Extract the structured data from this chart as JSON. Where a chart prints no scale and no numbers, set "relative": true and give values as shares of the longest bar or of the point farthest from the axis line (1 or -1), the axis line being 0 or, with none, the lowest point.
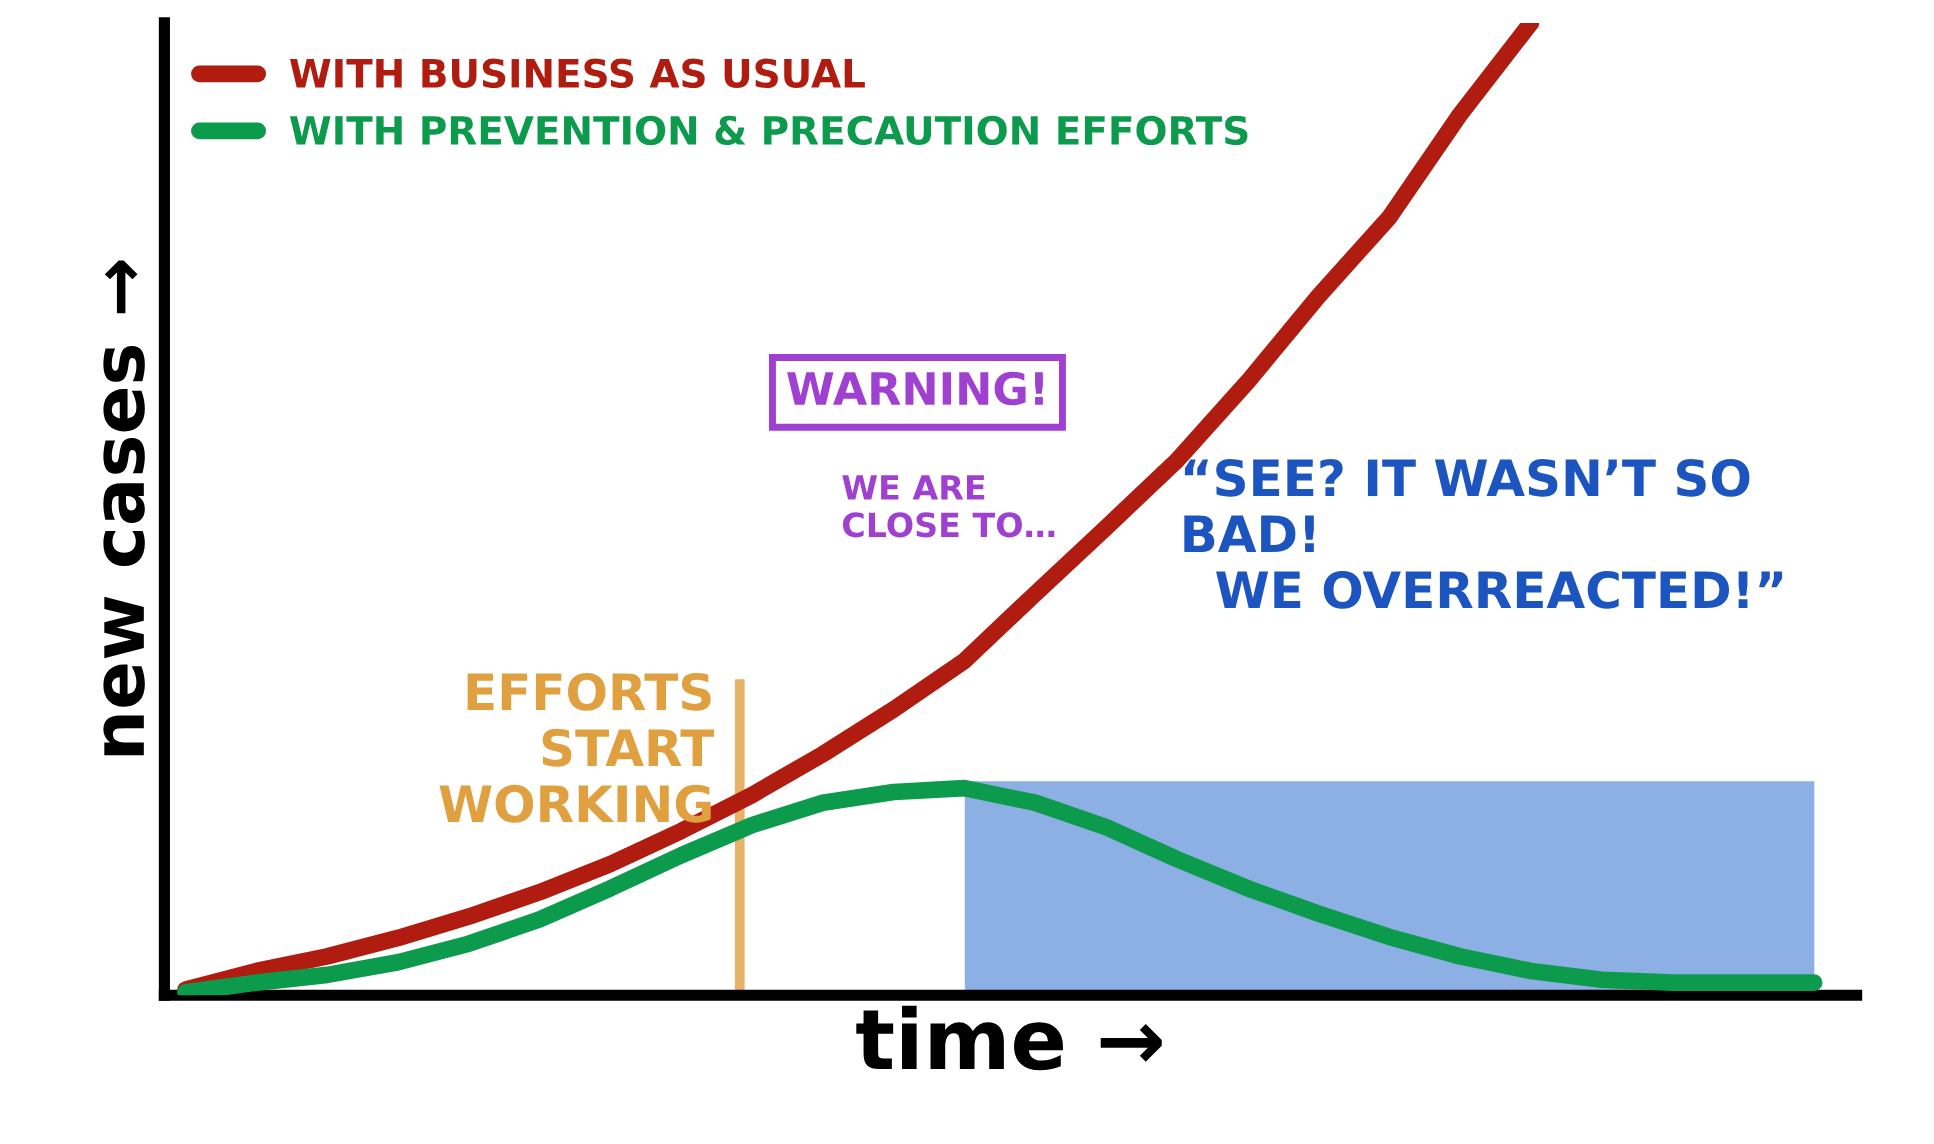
{
  "chart_data": {
    "type": "line",
    "relative": true,
    "xlabel": "time →",
    "ylabel": "new cases →",
    "categories": [
      null,
      null,
      null,
      null,
      null,
      null,
      null,
      null,
      null,
      null,
      null,
      null,
      null,
      null,
      null,
      null,
      null,
      null,
      null,
      null,
      null,
      null,
      null,
      null
    ],
    "series": [
      {
        "name": "WITH BUSINESS AS USUAL",
        "color": "#b01c10",
        "values": [
          0.006,
          0.025,
          0.04,
          0.059,
          0.081,
          0.106,
          0.135,
          0.169,
          0.206,
          0.248,
          0.294,
          0.344,
          0.413,
          0.481,
          0.55,
          0.631,
          0.719,
          0.8,
          0.906,
          1.0,
          null,
          null,
          null,
          null
        ]
      },
      {
        "name": "WITH PREVENTION & PRECAUTION EFFORTS",
        "color": "#0c9a4c",
        "values": [
          0.003,
          0.013,
          0.021,
          0.034,
          0.053,
          0.078,
          0.11,
          0.144,
          0.175,
          0.198,
          0.209,
          0.213,
          0.198,
          0.173,
          0.14,
          0.11,
          0.084,
          0.06,
          0.04,
          0.025,
          0.016,
          0.013,
          0.013,
          0.013
        ]
      }
    ],
    "annotations": [
      "EFFORTS\nSTART\nWORKING",
      "WARNING!",
      "WE ARE\nCLOSE TO…",
      "“SEE? IT WASN’T SO\nBAD!\n  WE OVERREACTED!”"
    ],
    "legend": "top left",
    "grid": false,
    "line_style": "solid"
  }
}
